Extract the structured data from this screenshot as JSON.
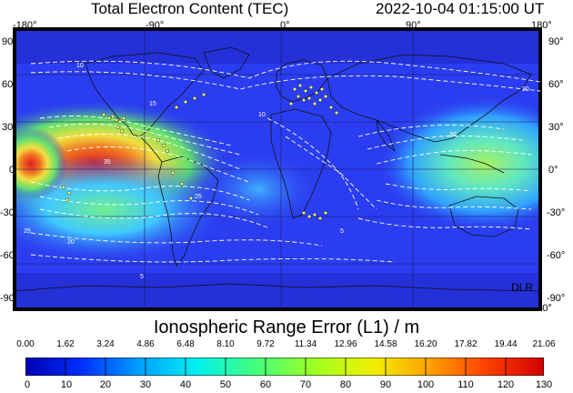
{
  "header": {
    "title": "Total Electron Content (TEC)",
    "datetime": "2022-10-04   01:15:00 UT"
  },
  "map": {
    "lon_ticks": [
      "-180°",
      "-90°",
      "0°",
      "90°",
      "180°"
    ],
    "lat_ticks": [
      "90°",
      "60°",
      "30°",
      "0°",
      "-30°",
      "-60°",
      "-90°"
    ],
    "credit": "DLR",
    "contour_labels": [
      "10",
      "15",
      "20",
      "25",
      "30",
      "35",
      "5"
    ],
    "colors": {
      "ocean_bg": "#2b3df0",
      "hot": "#e02020",
      "warm": "#f0d020",
      "mid": "#50e050",
      "cool": "#40c0ff"
    }
  },
  "colorbar": {
    "title": "Ionospheric Range Error (L1) / m",
    "top_labels": [
      "0.00",
      "1.62",
      "3.24",
      "4.86",
      "6.48",
      "8.10",
      "9.72",
      "11.34",
      "12.96",
      "14.58",
      "16.20",
      "17.82",
      "19.44",
      "21.06"
    ],
    "bottom_labels": [
      "0",
      "10",
      "20",
      "30",
      "40",
      "50",
      "60",
      "70",
      "80",
      "90",
      "100",
      "110",
      "120",
      "130"
    ],
    "gradient": [
      "#0000b0",
      "#0030ff",
      "#00a0ff",
      "#00f0f0",
      "#40ff80",
      "#a0ff20",
      "#f0f000",
      "#ffa000",
      "#ff4000",
      "#d00000"
    ]
  }
}
